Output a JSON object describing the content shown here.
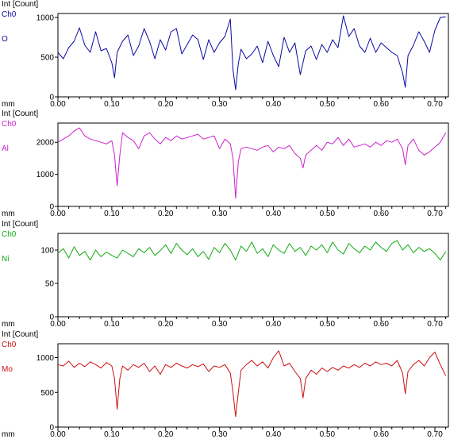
{
  "chart_data": [
    {
      "type": "line",
      "ylabel": "Int [Count]",
      "xlabel": "mm",
      "channel": "Ch0",
      "element": "O",
      "color": "#0a0aa0",
      "xlim": [
        0,
        0.725
      ],
      "ylim": [
        0,
        1050
      ],
      "yticks": [
        0,
        500,
        1000
      ],
      "ytick_labels": [
        "0",
        "500",
        "1000"
      ],
      "xticks": [
        0,
        0.1,
        0.2,
        0.3,
        0.4,
        0.5,
        0.6,
        0.7
      ],
      "xtick_labels": [
        "0.00",
        "0.10",
        "0.20",
        "0.30",
        "0.40",
        "0.50",
        "0.60",
        "0.70"
      ],
      "series": [
        {
          "x": [
            0.0,
            0.01,
            0.02,
            0.03,
            0.04,
            0.05,
            0.06,
            0.07,
            0.08,
            0.09,
            0.1,
            0.105,
            0.11,
            0.12,
            0.13,
            0.14,
            0.15,
            0.16,
            0.17,
            0.18,
            0.19,
            0.2,
            0.21,
            0.22,
            0.23,
            0.24,
            0.25,
            0.26,
            0.27,
            0.28,
            0.29,
            0.3,
            0.31,
            0.32,
            0.325,
            0.33,
            0.335,
            0.34,
            0.35,
            0.36,
            0.37,
            0.38,
            0.39,
            0.4,
            0.41,
            0.42,
            0.43,
            0.44,
            0.45,
            0.46,
            0.47,
            0.48,
            0.49,
            0.5,
            0.51,
            0.52,
            0.53,
            0.54,
            0.55,
            0.56,
            0.57,
            0.58,
            0.59,
            0.6,
            0.61,
            0.62,
            0.63,
            0.64,
            0.645,
            0.65,
            0.66,
            0.67,
            0.68,
            0.69,
            0.7,
            0.71,
            0.72
          ],
          "y": [
            560,
            480,
            620,
            700,
            870,
            650,
            560,
            820,
            580,
            610,
            430,
            240,
            560,
            700,
            780,
            520,
            640,
            860,
            700,
            480,
            720,
            590,
            820,
            860,
            540,
            660,
            780,
            720,
            470,
            720,
            560,
            680,
            760,
            980,
            340,
            90,
            420,
            600,
            480,
            540,
            640,
            430,
            700,
            520,
            380,
            750,
            560,
            680,
            280,
            580,
            640,
            470,
            660,
            560,
            720,
            620,
            1020,
            760,
            860,
            640,
            560,
            740,
            560,
            680,
            620,
            560,
            520,
            300,
            120,
            520,
            650,
            820,
            700,
            560,
            840,
            1000,
            1010
          ]
        }
      ]
    },
    {
      "type": "line",
      "ylabel": "Int [Count]",
      "xlabel": "mm",
      "channel": "Ch0",
      "element": "Al",
      "color": "#cc22cc",
      "xlim": [
        0,
        0.725
      ],
      "ylim": [
        0,
        2600
      ],
      "yticks": [
        0,
        1000,
        2000
      ],
      "ytick_labels": [
        "0",
        "1000",
        "2000"
      ],
      "xticks": [
        0,
        0.1,
        0.2,
        0.3,
        0.4,
        0.5,
        0.6,
        0.7
      ],
      "xtick_labels": [
        "0.00",
        "0.10",
        "0.20",
        "0.30",
        "0.40",
        "0.50",
        "0.60",
        "0.70"
      ],
      "series": [
        {
          "x": [
            0.0,
            0.01,
            0.02,
            0.03,
            0.04,
            0.05,
            0.06,
            0.07,
            0.08,
            0.09,
            0.1,
            0.105,
            0.11,
            0.115,
            0.12,
            0.13,
            0.14,
            0.15,
            0.16,
            0.17,
            0.18,
            0.19,
            0.2,
            0.21,
            0.22,
            0.23,
            0.24,
            0.25,
            0.26,
            0.27,
            0.28,
            0.29,
            0.3,
            0.31,
            0.32,
            0.325,
            0.33,
            0.335,
            0.34,
            0.35,
            0.36,
            0.37,
            0.38,
            0.39,
            0.4,
            0.41,
            0.42,
            0.43,
            0.44,
            0.45,
            0.455,
            0.46,
            0.47,
            0.48,
            0.49,
            0.5,
            0.51,
            0.52,
            0.53,
            0.54,
            0.55,
            0.56,
            0.57,
            0.58,
            0.59,
            0.6,
            0.61,
            0.62,
            0.63,
            0.64,
            0.645,
            0.65,
            0.66,
            0.67,
            0.68,
            0.69,
            0.7,
            0.71,
            0.72
          ],
          "y": [
            2000,
            2100,
            2200,
            2350,
            2450,
            2200,
            2100,
            2050,
            2000,
            1950,
            2050,
            1600,
            650,
            1600,
            2300,
            2150,
            2050,
            1800,
            2200,
            2300,
            2100,
            1950,
            2150,
            2050,
            2200,
            2100,
            2150,
            2200,
            2250,
            2100,
            2150,
            2200,
            1800,
            2100,
            1950,
            1500,
            250,
            1400,
            1800,
            1850,
            1800,
            1750,
            1850,
            1900,
            1700,
            1850,
            1800,
            1900,
            1650,
            1500,
            1200,
            1600,
            1750,
            1900,
            1750,
            2000,
            1950,
            2150,
            1900,
            2100,
            1850,
            1900,
            1950,
            1850,
            2000,
            1900,
            2050,
            2000,
            2100,
            1800,
            1300,
            1900,
            2100,
            1750,
            1600,
            1700,
            1850,
            2000,
            2300
          ]
        }
      ]
    },
    {
      "type": "line",
      "ylabel": "Int [Count]",
      "xlabel": "mm",
      "channel": "Ch0",
      "element": "Ni",
      "color": "#11aa11",
      "xlim": [
        0,
        0.725
      ],
      "ylim": [
        0,
        125
      ],
      "yticks": [
        0,
        50,
        100
      ],
      "ytick_labels": [
        "0",
        "50",
        "100"
      ],
      "xticks": [
        0,
        0.1,
        0.2,
        0.3,
        0.4,
        0.5,
        0.6,
        0.7
      ],
      "xtick_labels": [
        "0.00",
        "0.10",
        "0.20",
        "0.30",
        "0.40",
        "0.50",
        "0.60",
        "0.70"
      ],
      "series": [
        {
          "x": [
            0.0,
            0.01,
            0.02,
            0.03,
            0.04,
            0.05,
            0.06,
            0.07,
            0.08,
            0.09,
            0.1,
            0.11,
            0.12,
            0.13,
            0.14,
            0.15,
            0.16,
            0.17,
            0.18,
            0.19,
            0.2,
            0.21,
            0.22,
            0.23,
            0.24,
            0.25,
            0.26,
            0.27,
            0.28,
            0.29,
            0.3,
            0.31,
            0.32,
            0.33,
            0.34,
            0.35,
            0.36,
            0.37,
            0.38,
            0.39,
            0.4,
            0.41,
            0.42,
            0.43,
            0.44,
            0.45,
            0.46,
            0.47,
            0.48,
            0.49,
            0.5,
            0.51,
            0.52,
            0.53,
            0.54,
            0.55,
            0.56,
            0.57,
            0.58,
            0.59,
            0.6,
            0.61,
            0.62,
            0.63,
            0.64,
            0.65,
            0.66,
            0.67,
            0.68,
            0.69,
            0.7,
            0.71,
            0.72
          ],
          "y": [
            95,
            102,
            88,
            105,
            92,
            98,
            85,
            100,
            90,
            97,
            92,
            88,
            100,
            95,
            90,
            102,
            96,
            104,
            92,
            99,
            108,
            95,
            110,
            100,
            93,
            102,
            90,
            98,
            86,
            104,
            96,
            110,
            100,
            85,
            106,
            98,
            112,
            95,
            102,
            90,
            108,
            100,
            95,
            110,
            98,
            104,
            92,
            106,
            100,
            108,
            96,
            112,
            100,
            94,
            110,
            102,
            96,
            106,
            100,
            112,
            104,
            98,
            110,
            114,
            100,
            108,
            96,
            104,
            98,
            102,
            95,
            85,
            98
          ]
        }
      ]
    },
    {
      "type": "line",
      "ylabel": "Int [Count]",
      "xlabel": "mm",
      "channel": "Ch0",
      "element": "Mo",
      "color": "#cc1111",
      "xlim": [
        0,
        0.725
      ],
      "ylim": [
        0,
        1200
      ],
      "yticks": [
        0,
        500,
        1000
      ],
      "ytick_labels": [
        "0",
        "500",
        "1000"
      ],
      "xticks": [
        0,
        0.1,
        0.2,
        0.3,
        0.4,
        0.5,
        0.6,
        0.7
      ],
      "xtick_labels": [
        "0.00",
        "0.10",
        "0.20",
        "0.30",
        "0.40",
        "0.50",
        "0.60",
        "0.70"
      ],
      "series": [
        {
          "x": [
            0.0,
            0.01,
            0.02,
            0.03,
            0.04,
            0.05,
            0.06,
            0.07,
            0.08,
            0.09,
            0.1,
            0.105,
            0.11,
            0.115,
            0.12,
            0.13,
            0.14,
            0.15,
            0.16,
            0.17,
            0.18,
            0.19,
            0.2,
            0.21,
            0.22,
            0.23,
            0.24,
            0.25,
            0.26,
            0.27,
            0.28,
            0.29,
            0.3,
            0.31,
            0.32,
            0.325,
            0.33,
            0.335,
            0.34,
            0.35,
            0.36,
            0.37,
            0.38,
            0.39,
            0.4,
            0.41,
            0.42,
            0.43,
            0.44,
            0.45,
            0.455,
            0.46,
            0.47,
            0.48,
            0.49,
            0.5,
            0.51,
            0.52,
            0.53,
            0.54,
            0.55,
            0.56,
            0.57,
            0.58,
            0.59,
            0.6,
            0.61,
            0.62,
            0.63,
            0.64,
            0.645,
            0.65,
            0.66,
            0.67,
            0.68,
            0.69,
            0.7,
            0.71,
            0.72
          ],
          "y": [
            900,
            880,
            950,
            860,
            920,
            870,
            940,
            900,
            850,
            930,
            880,
            700,
            260,
            700,
            880,
            820,
            900,
            860,
            920,
            800,
            880,
            760,
            900,
            860,
            920,
            880,
            850,
            900,
            870,
            910,
            800,
            880,
            860,
            900,
            780,
            500,
            150,
            500,
            820,
            900,
            960,
            880,
            940,
            850,
            1000,
            1100,
            880,
            920,
            800,
            700,
            420,
            700,
            820,
            760,
            850,
            800,
            860,
            820,
            880,
            850,
            900,
            860,
            920,
            880,
            940,
            900,
            920,
            880,
            960,
            780,
            480,
            800,
            900,
            960,
            880,
            1000,
            1080,
            900,
            740
          ]
        }
      ]
    }
  ]
}
